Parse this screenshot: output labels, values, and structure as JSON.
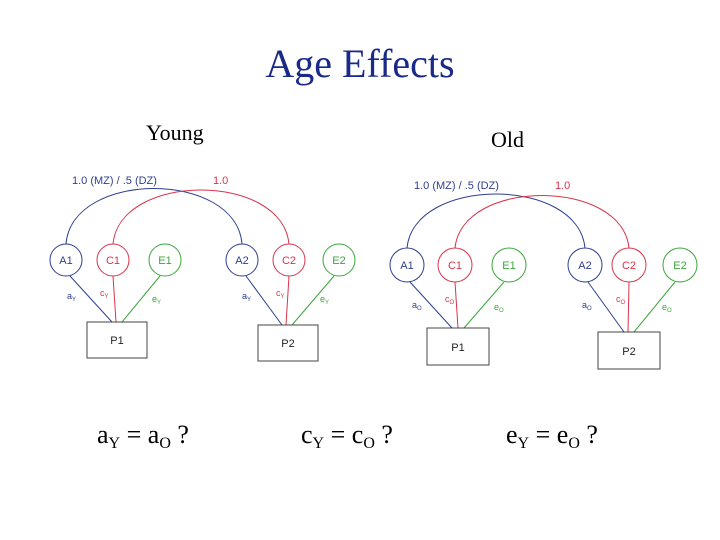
{
  "title": "Age Effects",
  "colors": {
    "title": "#1a2a88",
    "a_path": "#2e3f8f",
    "c_path": "#d8344a",
    "e_path": "#3aa63a",
    "box": "#444444"
  },
  "young": {
    "label": "Young",
    "corr_a": "1.0 (MZ) / .5 (DZ)",
    "corr_c": "1.0",
    "latents": [
      "A1",
      "C1",
      "E1",
      "A2",
      "C2",
      "E2"
    ],
    "paths": [
      {
        "base": "a",
        "sub": "Y"
      },
      {
        "base": "c",
        "sub": "Y"
      },
      {
        "base": "e",
        "sub": "Y"
      },
      {
        "base": "a",
        "sub": "Y"
      },
      {
        "base": "c",
        "sub": "Y"
      },
      {
        "base": "e",
        "sub": "Y"
      }
    ],
    "observed": [
      "P1",
      "P2"
    ]
  },
  "old": {
    "label": "Old",
    "corr_a": "1.0 (MZ) / .5 (DZ)",
    "corr_c": "1.0",
    "latents": [
      "A1",
      "C1",
      "E1",
      "A2",
      "C2",
      "E2"
    ],
    "paths": [
      {
        "base": "a",
        "sub": "O"
      },
      {
        "base": "c",
        "sub": "O"
      },
      {
        "base": "e",
        "sub": "O"
      },
      {
        "base": "a",
        "sub": "O"
      },
      {
        "base": "c",
        "sub": "O"
      },
      {
        "base": "e",
        "sub": "O"
      }
    ],
    "observed": [
      "P1",
      "P2"
    ]
  },
  "equations": [
    {
      "left": "a",
      "left_sub": "Y",
      "right": "a",
      "right_sub": "O",
      "q": "?"
    },
    {
      "left": "c",
      "left_sub": "Y",
      "right": "c",
      "right_sub": "O",
      "q": "?"
    },
    {
      "left": "e",
      "left_sub": "Y",
      "right": "e",
      "right_sub": "O",
      "q": "?"
    }
  ]
}
